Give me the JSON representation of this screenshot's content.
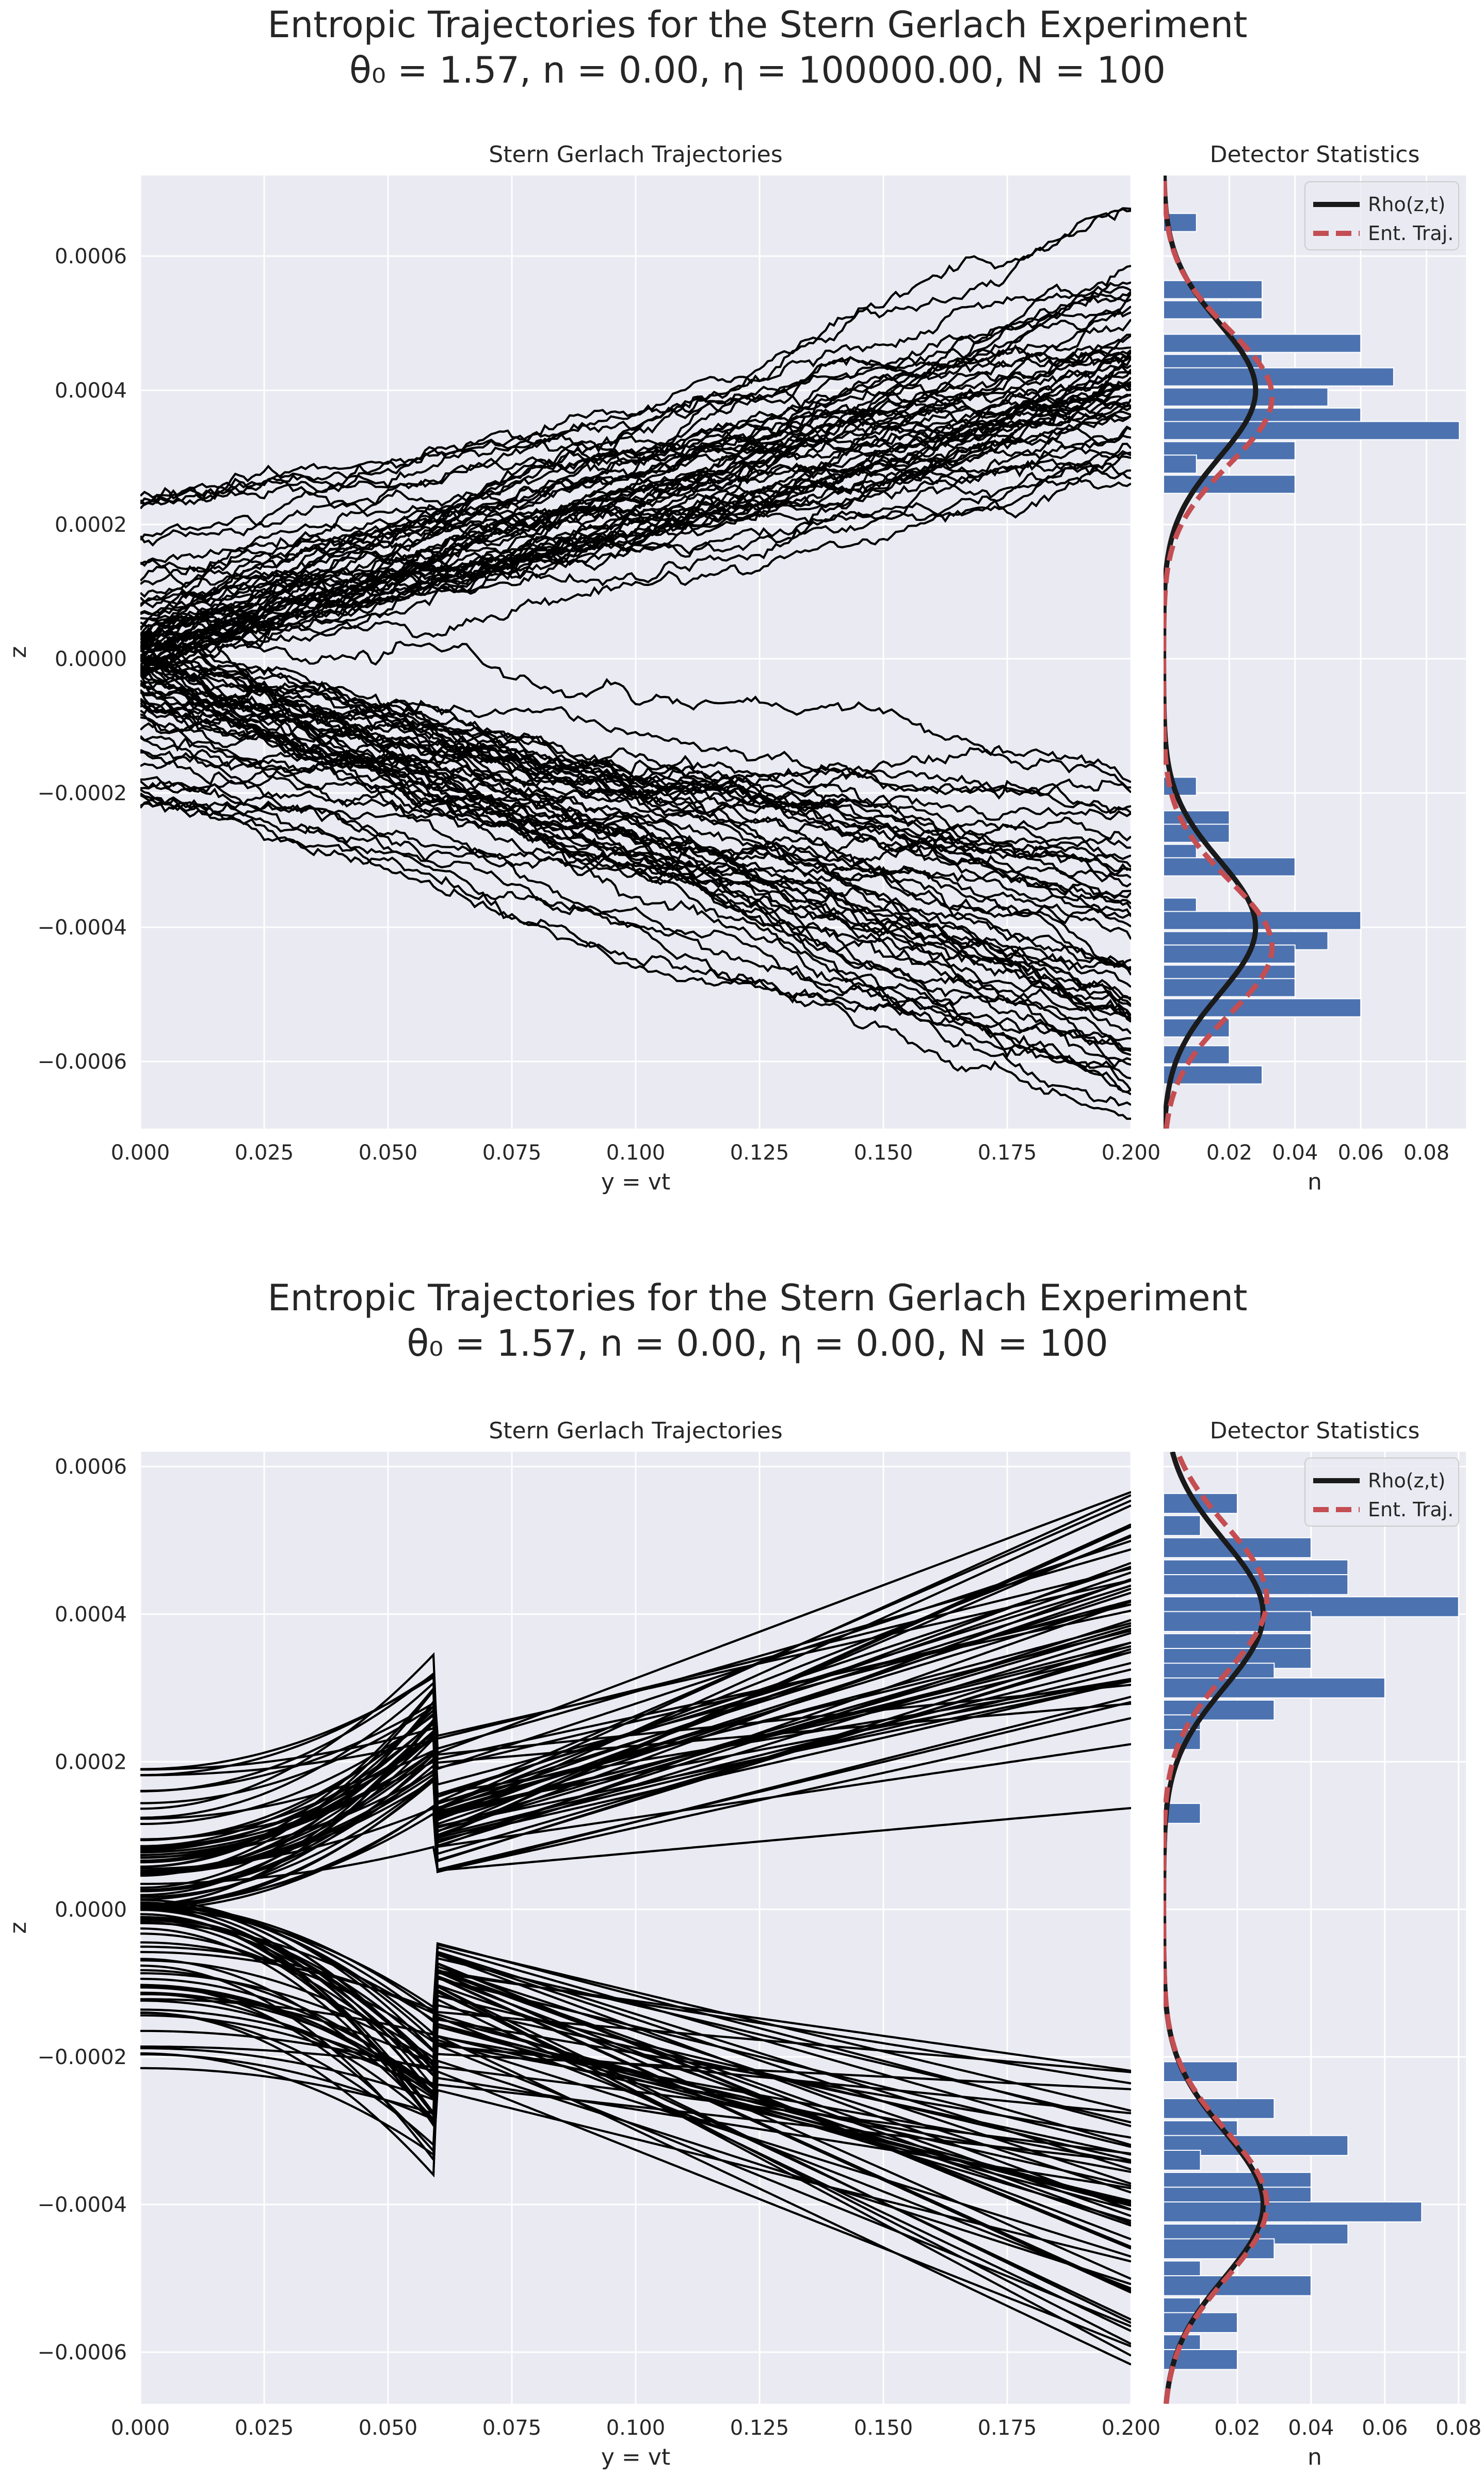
{
  "figure": {
    "panels": [
      {
        "title_line1": "Entropic Trajectories for the Stern Gerlach Experiment",
        "title_line2": "θ₀ = 1.57, n = 0.00, η = 100000.00, N = 100",
        "theta0": "1.57",
        "n": "0.00",
        "eta": "100000.00",
        "N_label": "100"
      },
      {
        "title_line1": "Entropic Trajectories for the Stern Gerlach Experiment",
        "title_line2": "θ₀ = 1.57, n = 0.00, η = 0.00, N = 100",
        "theta0": "1.57",
        "n": "0.00",
        "eta": "0.00",
        "N_label": "100"
      }
    ],
    "colors": {
      "background": "#eaeaf2",
      "grid": "#ffffff",
      "trajectory": "#000000",
      "bars": "#4c72b0",
      "rho": "#1a1a1a",
      "ent_traj": "#c44e52"
    }
  },
  "chart_data": [
    {
      "type": "line",
      "title": "Stern Gerlach Trajectories",
      "xlabel": "y = vt",
      "ylabel": "z",
      "xlim": [
        0,
        0.2
      ],
      "ylim": [
        -0.0007,
        0.00072
      ],
      "xticks": [
        "0.000",
        "0.025",
        "0.050",
        "0.075",
        "0.100",
        "0.125",
        "0.150",
        "0.175",
        "0.200"
      ],
      "yticks": [
        "0.0006",
        "0.0004",
        "0.0002",
        "0.0000",
        "−0.0002",
        "−0.0004",
        "−0.0006"
      ],
      "trajectory_count": 100,
      "noise": "stochastic",
      "trajectory_start_z": [
        0.00023,
        0.00021,
        0.00018,
        0.00015,
        0.00012,
        0.0001,
        9e-05,
        8e-05,
        7e-05,
        6e-05,
        5e-05,
        4.5e-05,
        4e-05,
        3.5e-05,
        3e-05,
        2.5e-05,
        2e-05,
        1.5e-05,
        1e-05,
        5e-06,
        0.0,
        -5e-06,
        -1e-05,
        -1.5e-05,
        -2e-05,
        -2.5e-05,
        -3e-05,
        -3.5e-05,
        -4e-05,
        -4.5e-05,
        -5e-05,
        -6e-05,
        -7e-05,
        -8e-05,
        -9e-05,
        -0.0001,
        -0.00012,
        -0.00014,
        -0.00016,
        -0.00018,
        -0.0002,
        -0.00022
      ],
      "trajectory_end_z_upper": [
        0.00066,
        0.00055,
        0.00054,
        0.00053,
        0.00052,
        0.0005,
        0.00048,
        0.00047,
        0.00046,
        0.00045,
        0.00044,
        0.00043,
        0.00042,
        0.00041,
        0.0004,
        0.00039,
        0.00038,
        0.00037,
        0.00036,
        0.00035,
        0.00034,
        0.00033,
        0.00032,
        0.00031,
        0.0003,
        0.00029,
        0.00028,
        0.00027,
        0.00026
      ],
      "trajectory_end_z_lower": [
        -0.00019,
        -0.00023,
        -0.00025,
        -0.00027,
        -0.00029,
        -0.00031,
        -0.00033,
        -0.00035,
        -0.00037,
        -0.00039,
        -0.0004,
        -0.00041,
        -0.00042,
        -0.00043,
        -0.00044,
        -0.00045,
        -0.00046,
        -0.00048,
        -0.0005,
        -0.00051,
        -0.00052,
        -0.00053,
        -0.00054,
        -0.00055,
        -0.00057,
        -0.00059,
        -0.0006,
        -0.00062,
        -0.00063,
        -0.00064
      ]
    },
    {
      "type": "bar",
      "orientation": "horizontal",
      "title": "Detector Statistics",
      "xlabel": "n",
      "xlim": [
        0,
        0.092
      ],
      "ylim": [
        -0.0007,
        0.00072
      ],
      "xticks": [
        "0.02",
        "0.04",
        "0.06",
        "0.08"
      ],
      "bins": [
        {
          "z": 0.00065,
          "n": 0.01
        },
        {
          "z": 0.00055,
          "n": 0.03
        },
        {
          "z": 0.00052,
          "n": 0.03
        },
        {
          "z": 0.00047,
          "n": 0.06
        },
        {
          "z": 0.00044,
          "n": 0.03
        },
        {
          "z": 0.00042,
          "n": 0.07
        },
        {
          "z": 0.00039,
          "n": 0.05
        },
        {
          "z": 0.00036,
          "n": 0.06
        },
        {
          "z": 0.00034,
          "n": 0.09
        },
        {
          "z": 0.00031,
          "n": 0.04
        },
        {
          "z": 0.00029,
          "n": 0.01
        },
        {
          "z": 0.00026,
          "n": 0.04
        },
        {
          "z": -0.00019,
          "n": 0.01
        },
        {
          "z": -0.00024,
          "n": 0.02
        },
        {
          "z": -0.00026,
          "n": 0.02
        },
        {
          "z": -0.00029,
          "n": 0.01
        },
        {
          "z": -0.00031,
          "n": 0.04
        },
        {
          "z": -0.00037,
          "n": 0.01
        },
        {
          "z": -0.00039,
          "n": 0.06
        },
        {
          "z": -0.00042,
          "n": 0.05
        },
        {
          "z": -0.00044,
          "n": 0.04
        },
        {
          "z": -0.00047,
          "n": 0.04
        },
        {
          "z": -0.00049,
          "n": 0.04
        },
        {
          "z": -0.00052,
          "n": 0.06
        },
        {
          "z": -0.00055,
          "n": 0.02
        },
        {
          "z": -0.00059,
          "n": 0.02
        },
        {
          "z": -0.00062,
          "n": 0.03
        }
      ],
      "rho": {
        "label": "Rho(z,t)",
        "amp": 0.028,
        "mu_upper": 0.0004,
        "mu_lower": -0.0004,
        "sigma": 0.0001
      },
      "ent_traj": {
        "label": "Ent. Traj.",
        "amp": 0.033,
        "mu_upper": 0.00039,
        "mu_lower": -0.00043,
        "sigma": 0.0001
      },
      "legend": [
        "Rho(z,t)",
        "Ent. Traj."
      ],
      "legend_position": "upper right"
    },
    {
      "type": "line",
      "title": "Stern Gerlach Trajectories",
      "xlabel": "y = vt",
      "ylabel": "z",
      "xlim": [
        0,
        0.2
      ],
      "ylim": [
        -0.00067,
        0.00062
      ],
      "xticks": [
        "0.000",
        "0.025",
        "0.050",
        "0.075",
        "0.100",
        "0.125",
        "0.150",
        "0.175",
        "0.200"
      ],
      "yticks": [
        "0.0006",
        "0.0004",
        "0.0002",
        "0.0000",
        "−0.0002",
        "−0.0004",
        "−0.0006"
      ],
      "trajectory_count": 100,
      "noise": "smooth",
      "trajectory_start_z": [
        0.00019,
        0.00018,
        0.00016,
        0.00014,
        0.00012,
        0.0001,
        9.5e-05,
        9e-05,
        8.5e-05,
        8e-05,
        7e-05,
        6e-05,
        5.5e-05,
        5e-05,
        4.5e-05,
        4e-05,
        3e-05,
        2.5e-05,
        2e-05,
        1.5e-05,
        1e-05,
        5e-06,
        2e-06,
        -2e-06,
        -5e-06,
        -1e-05,
        -1.5e-05,
        -2e-05,
        -3e-05,
        -4e-05,
        -5e-05,
        -6e-05,
        -7e-05,
        -8e-05,
        -9e-05,
        -0.0001,
        -0.00011,
        -0.00012,
        -0.00013,
        -0.00014,
        -0.00016,
        -0.00019,
        -0.0002,
        -0.00022,
        -0.00023
      ],
      "trajectory_end_z_upper": [
        0.00057,
        0.00055,
        0.00052,
        0.0005,
        0.00049,
        0.00047,
        0.00046,
        0.00045,
        0.00044,
        0.00043,
        0.00042,
        0.00041,
        0.0004,
        0.00039,
        0.00038,
        0.00037,
        0.00036,
        0.00035,
        0.00034,
        0.00032,
        0.00031,
        0.0003,
        0.00029,
        0.00028,
        0.00026,
        0.00023,
        0.00014
      ],
      "trajectory_end_z_lower": [
        -0.00022,
        -0.00024,
        -0.00027,
        -0.00029,
        -0.00031,
        -0.00033,
        -0.00034,
        -0.00035,
        -0.00036,
        -0.00037,
        -0.00038,
        -0.00039,
        -0.0004,
        -0.00041,
        -0.00042,
        -0.00043,
        -0.00044,
        -0.00045,
        -0.00046,
        -0.00047,
        -0.00048,
        -0.0005,
        -0.00051,
        -0.00052,
        -0.00056,
        -0.00057,
        -0.00059,
        -0.00061
      ]
    },
    {
      "type": "bar",
      "orientation": "horizontal",
      "title": "Detector Statistics",
      "xlabel": "n",
      "xlim": [
        0,
        0.082
      ],
      "ylim": [
        -0.00067,
        0.00062
      ],
      "xticks": [
        "0.02",
        "0.04",
        "0.06",
        "0.08"
      ],
      "bins": [
        {
          "z": 0.00055,
          "n": 0.02
        },
        {
          "z": 0.00052,
          "n": 0.01
        },
        {
          "z": 0.00049,
          "n": 0.04
        },
        {
          "z": 0.00046,
          "n": 0.05
        },
        {
          "z": 0.00044,
          "n": 0.05
        },
        {
          "z": 0.00041,
          "n": 0.08
        },
        {
          "z": 0.00039,
          "n": 0.04
        },
        {
          "z": 0.00036,
          "n": 0.04
        },
        {
          "z": 0.00034,
          "n": 0.04
        },
        {
          "z": 0.00032,
          "n": 0.03
        },
        {
          "z": 0.0003,
          "n": 0.06
        },
        {
          "z": 0.00027,
          "n": 0.03
        },
        {
          "z": 0.00025,
          "n": 0.01
        },
        {
          "z": 0.00023,
          "n": 0.01
        },
        {
          "z": 0.00013,
          "n": 0.01
        },
        {
          "z": -0.00022,
          "n": 0.02
        },
        {
          "z": -0.00027,
          "n": 0.03
        },
        {
          "z": -0.0003,
          "n": 0.02
        },
        {
          "z": -0.00032,
          "n": 0.05
        },
        {
          "z": -0.00034,
          "n": 0.01
        },
        {
          "z": -0.00037,
          "n": 0.04
        },
        {
          "z": -0.00039,
          "n": 0.04
        },
        {
          "z": -0.00041,
          "n": 0.07
        },
        {
          "z": -0.00044,
          "n": 0.05
        },
        {
          "z": -0.00046,
          "n": 0.03
        },
        {
          "z": -0.00049,
          "n": 0.01
        },
        {
          "z": -0.00051,
          "n": 0.04
        },
        {
          "z": -0.00054,
          "n": 0.01
        },
        {
          "z": -0.00056,
          "n": 0.02
        },
        {
          "z": -0.00059,
          "n": 0.01
        },
        {
          "z": -0.00061,
          "n": 0.02
        }
      ],
      "rho": {
        "label": "Rho(z,t)",
        "amp": 0.027,
        "mu_upper": 0.0004,
        "mu_lower": -0.0004,
        "sigma": 0.0001
      },
      "ent_traj": {
        "label": "Ent. Traj.",
        "amp": 0.028,
        "mu_upper": 0.00042,
        "mu_lower": -0.0004,
        "sigma": 0.0001
      },
      "legend": [
        "Rho(z,t)",
        "Ent. Traj."
      ],
      "legend_position": "upper right"
    }
  ]
}
